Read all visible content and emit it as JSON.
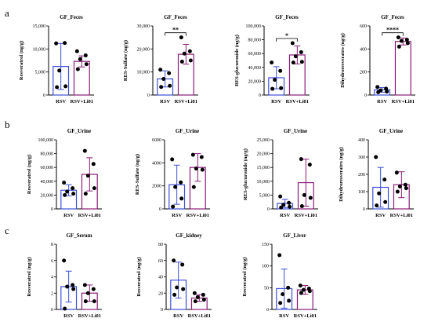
{
  "colors": {
    "rsv": "#3d4fd8",
    "rsv_li01": "#8b1a7a",
    "dot": "#000000",
    "axis": "#000000"
  },
  "row_labels": [
    "a",
    "b",
    "c"
  ],
  "chart_data": [
    {
      "row": 0,
      "col": 0,
      "type": "bar",
      "title": "GF_Feces",
      "ylabel": "Resveratrol (ng/g)",
      "categories": [
        "RSV",
        "RSV+Li01"
      ],
      "ylim": [
        0,
        15000
      ],
      "yticks": [
        "0",
        "5,000",
        "10,000",
        "15,000"
      ],
      "means": [
        6200,
        7300
      ],
      "sd": [
        5000,
        1200
      ],
      "points": [
        [
          11200,
          11300,
          5300,
          1900,
          1700
        ],
        [
          9500,
          8600,
          7800,
          6700,
          5600
        ]
      ],
      "significance": ""
    },
    {
      "row": 0,
      "col": 1,
      "type": "bar",
      "title": "GF_Feces",
      "ylabel": "RES-Sulfate (ng/g)",
      "categories": [
        "RSV",
        "RSV+Li01"
      ],
      "ylim": [
        0,
        30000
      ],
      "yticks": [
        "0",
        "10,000",
        "20,000",
        "30,000"
      ],
      "means": [
        7000,
        17700
      ],
      "sd": [
        3500,
        4300
      ],
      "points": [
        [
          11000,
          9500,
          7000,
          4000,
          3500
        ],
        [
          25000,
          19000,
          18000,
          15000,
          14500
        ]
      ],
      "significance": "**"
    },
    {
      "row": 0,
      "col": 2,
      "type": "bar",
      "title": "GF_Feces",
      "ylabel": "RES-glucuronide (ng/g)",
      "categories": [
        "RSV",
        "RSV+Li01"
      ],
      "ylim": [
        0,
        100000
      ],
      "yticks": [
        "0",
        "20,000",
        "40,000",
        "60,000",
        "80,000",
        "100,000"
      ],
      "means": [
        25000,
        58000
      ],
      "sd": [
        16000,
        13000
      ],
      "points": [
        [
          47000,
          35000,
          22000,
          10000,
          9000
        ],
        [
          75000,
          62000,
          56000,
          48000,
          47000
        ]
      ],
      "significance": "*"
    },
    {
      "row": 0,
      "col": 3,
      "type": "bar",
      "title": "GF_Feces",
      "ylabel": "Dihydroresveratro (ng/g)",
      "categories": [
        "RSV",
        "RSV+Li01"
      ],
      "ylim": [
        0,
        600
      ],
      "yticks": [
        "0",
        "200",
        "400",
        "600"
      ],
      "means": [
        45,
        465
      ],
      "sd": [
        20,
        30
      ],
      "points": [
        [
          70,
          55,
          40,
          30,
          25
        ],
        [
          500,
          480,
          470,
          450,
          420
        ]
      ],
      "significance": "****"
    },
    {
      "row": 1,
      "col": 0,
      "type": "bar",
      "title": "GF_Urine",
      "ylabel": "Resveratrol (ng/g)",
      "categories": [
        "RSV",
        "RSV+Li01"
      ],
      "ylim": [
        0,
        100000
      ],
      "yticks": [
        "0",
        "20,000",
        "40,000",
        "60,000",
        "80,000",
        "100,000"
      ],
      "means": [
        27000,
        50000
      ],
      "sd": [
        8000,
        24000
      ],
      "points": [
        [
          38000,
          30000,
          25000,
          22000,
          20000
        ],
        [
          84000,
          65000,
          48000,
          30000,
          22000
        ]
      ],
      "significance": ""
    },
    {
      "row": 1,
      "col": 1,
      "type": "bar",
      "title": "GF_Urine",
      "ylabel": "RES-Sulfate (ng/g)",
      "categories": [
        "RSV",
        "RSV+Li01"
      ],
      "ylim": [
        0,
        6000
      ],
      "yticks": [
        "0",
        "2000",
        "4000",
        "6000"
      ],
      "means": [
        2100,
        3600
      ],
      "sd": [
        1700,
        1200
      ],
      "points": [
        [
          4300,
          2300,
          1900,
          900,
          200
        ],
        [
          4700,
          4500,
          3500,
          3400,
          1900
        ]
      ],
      "significance": ""
    },
    {
      "row": 1,
      "col": 2,
      "type": "bar",
      "title": "GF_Urine",
      "ylabel": "RES-glucuronide (ng/g)",
      "categories": [
        "RSV",
        "RSV+Li01"
      ],
      "ylim": [
        0,
        25000
      ],
      "yticks": [
        "0",
        "5,000",
        "10,000",
        "15,000",
        "20,000",
        "25,000"
      ],
      "means": [
        2000,
        9500
      ],
      "sd": [
        1500,
        8500
      ],
      "points": [
        [
          4500,
          2200,
          1500,
          800,
          500
        ],
        [
          18000,
          16000,
          5000,
          4000,
          1000
        ]
      ],
      "significance": ""
    },
    {
      "row": 1,
      "col": 3,
      "type": "bar",
      "title": "GF_Urine",
      "ylabel": "Dihydroresveratro (ng/g)",
      "categories": [
        "RSV",
        "RSV+Li01"
      ],
      "ylim": [
        0,
        400
      ],
      "yticks": [
        "0",
        "100",
        "200",
        "300",
        "400"
      ],
      "means": [
        125,
        140
      ],
      "sd": [
        115,
        75
      ],
      "points": [
        [
          300,
          170,
          90,
          40,
          20
        ],
        [
          210,
          140,
          130,
          120,
          100
        ]
      ],
      "significance": ""
    },
    {
      "row": 2,
      "col": 0,
      "type": "bar",
      "title": "GF_Serum",
      "ylabel": "Resveratrol (ng/g)",
      "categories": [
        "RSV",
        "RSV+Li01"
      ],
      "ylim": [
        0,
        8
      ],
      "yticks": [
        "0",
        "2",
        "4",
        "6",
        "8"
      ],
      "means": [
        2.8,
        2.0
      ],
      "sd": [
        1.9,
        1.0
      ],
      "points": [
        [
          6.0,
          3.0,
          2.8,
          2.5,
          0.1
        ],
        [
          3.0,
          2.5,
          2.0,
          1.0,
          1.0
        ]
      ],
      "significance": ""
    },
    {
      "row": 2,
      "col": 1,
      "type": "bar",
      "title": "GF_kidney",
      "ylabel": "Resveratrol (ng/g)",
      "categories": [
        "RSV",
        "RSV+Li01"
      ],
      "ylim": [
        0,
        80
      ],
      "yticks": [
        "0",
        "20",
        "40",
        "60",
        "80"
      ],
      "means": [
        36,
        14
      ],
      "sd": [
        22,
        4
      ],
      "points": [
        [
          60,
          55,
          27,
          25,
          18
        ],
        [
          20,
          18,
          15,
          12,
          10
        ]
      ],
      "significance": ""
    },
    {
      "row": 2,
      "col": 2,
      "type": "bar",
      "title": "GF_Liver",
      "ylabel": "Resveratrol (ng/g)",
      "categories": [
        "RSV",
        "RSV+Li01"
      ],
      "ylim": [
        0,
        150
      ],
      "yticks": [
        "0",
        "50",
        "100",
        "150"
      ],
      "means": [
        48,
        45
      ],
      "sd": [
        45,
        10
      ],
      "points": [
        [
          125,
          50,
          35,
          20,
          15
        ],
        [
          55,
          48,
          45,
          42,
          38
        ]
      ],
      "significance": ""
    }
  ]
}
